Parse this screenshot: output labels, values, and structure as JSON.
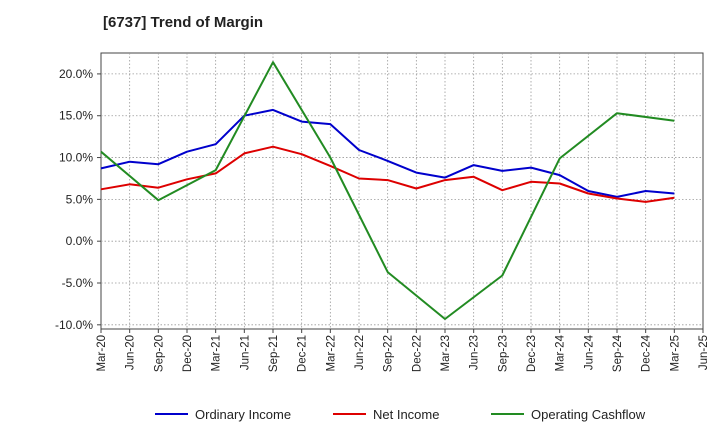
{
  "chart_data": {
    "type": "line",
    "title": "[6737]  Trend of Margin",
    "xlabel": "",
    "ylabel": "",
    "ylim": [
      -10.5,
      22.5
    ],
    "y_ticks": [
      20,
      15,
      10,
      5,
      0,
      -5,
      -10
    ],
    "y_tick_labels": [
      "20.0%",
      "15.0%",
      "10.0%",
      "5.0%",
      "0.0%",
      "-5.0%",
      "-10.0%"
    ],
    "x_tick_labels": [
      "Mar-20",
      "Jun-20",
      "Sep-20",
      "Dec-20",
      "Mar-21",
      "Jun-21",
      "Sep-21",
      "Dec-21",
      "Mar-22",
      "Jun-22",
      "Sep-22",
      "Dec-22",
      "Mar-23",
      "Jun-23",
      "Sep-23",
      "Dec-23",
      "Mar-24",
      "Jun-24",
      "Sep-24",
      "Dec-24",
      "Mar-25",
      "Jun-25"
    ],
    "grid": true,
    "legend_position": "bottom",
    "series": [
      {
        "name": "Ordinary Income",
        "color": "#0000cc",
        "values": [
          8.7,
          9.5,
          9.2,
          10.7,
          11.6,
          15.0,
          15.7,
          14.3,
          14.0,
          10.9,
          9.6,
          8.2,
          7.6,
          9.1,
          8.4,
          8.8,
          7.9,
          6.0,
          5.3,
          6.0,
          5.7
        ]
      },
      {
        "name": "Net Income",
        "color": "#dd0000",
        "values": [
          6.2,
          6.8,
          6.4,
          7.4,
          8.1,
          10.5,
          11.3,
          10.4,
          9.0,
          7.5,
          7.3,
          6.3,
          7.3,
          7.7,
          6.1,
          7.1,
          6.9,
          5.7,
          5.1,
          4.7,
          5.2
        ]
      },
      {
        "name": "Operating Cashflow",
        "color": "#228b22",
        "values": [
          10.7,
          null,
          4.9,
          null,
          8.5,
          null,
          21.4,
          null,
          10.0,
          null,
          -3.7,
          null,
          -9.3,
          null,
          -4.1,
          null,
          9.9,
          null,
          15.3,
          null,
          14.4
        ]
      }
    ]
  }
}
